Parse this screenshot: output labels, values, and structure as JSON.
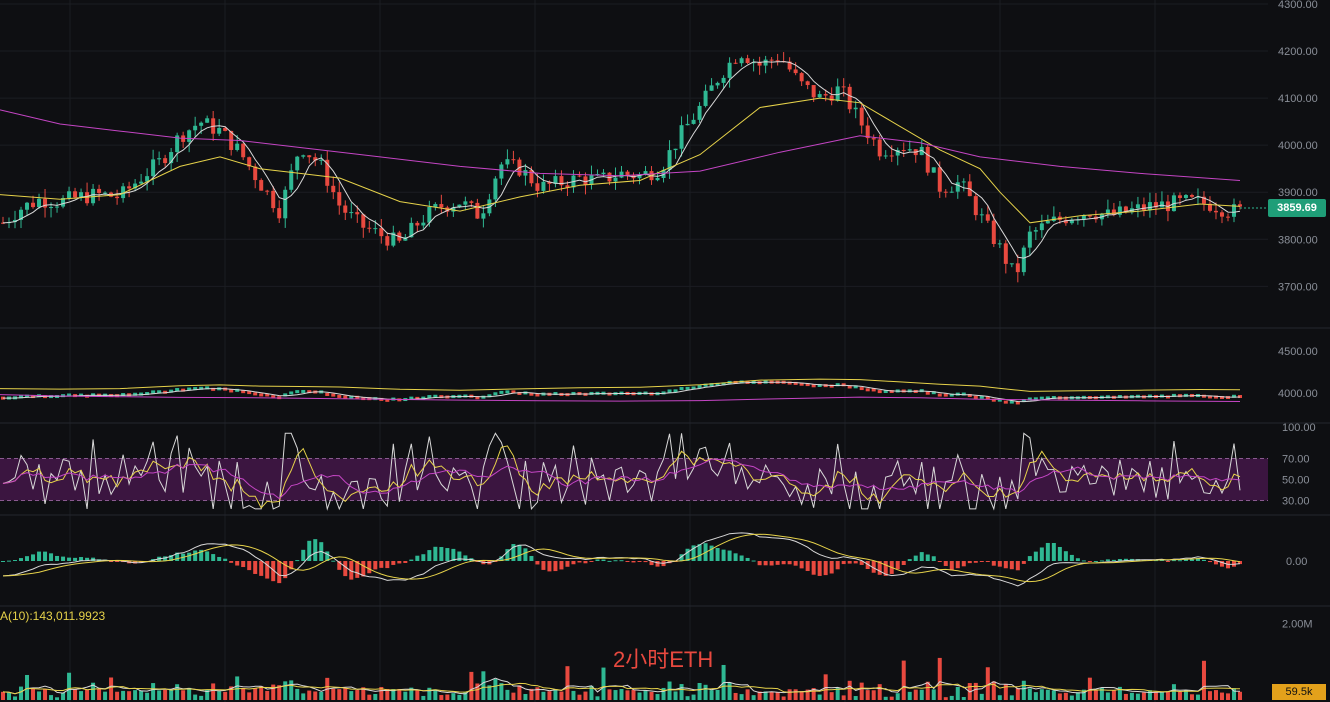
{
  "chart_data": {
    "type": "candlestick",
    "symbol_label": "2小时ETH",
    "current_price": "3859.69",
    "volume_ma_label": "A(10):143,011.9923",
    "volume_last": "59.5k",
    "panels": {
      "price": {
        "ylim": [
          3620,
          4300
        ],
        "ticks": [
          "4300.00",
          "4200.00",
          "4100.00",
          "4000.00",
          "3900.00",
          "3800.00",
          "3700.00"
        ],
        "tick_values": [
          4300,
          4200,
          4100,
          4000,
          3900,
          3800,
          3700
        ],
        "close_path": [
          [
            0,
            3830
          ],
          [
            20,
            3865
          ],
          [
            40,
            3885
          ],
          [
            60,
            3880
          ],
          [
            80,
            3890
          ],
          [
            100,
            3895
          ],
          [
            120,
            3890
          ],
          [
            140,
            3930
          ],
          [
            160,
            3965
          ],
          [
            180,
            4020
          ],
          [
            200,
            4050
          ],
          [
            220,
            4030
          ],
          [
            240,
            3985
          ],
          [
            260,
            3920
          ],
          [
            280,
            3860
          ],
          [
            300,
            4000
          ],
          [
            320,
            3960
          ],
          [
            340,
            3870
          ],
          [
            360,
            3830
          ],
          [
            380,
            3810
          ],
          [
            400,
            3790
          ],
          [
            420,
            3840
          ],
          [
            440,
            3870
          ],
          [
            460,
            3880
          ],
          [
            480,
            3850
          ],
          [
            500,
            3960
          ],
          [
            520,
            3950
          ],
          [
            540,
            3910
          ],
          [
            560,
            3920
          ],
          [
            580,
            3930
          ],
          [
            600,
            3925
          ],
          [
            620,
            3940
          ],
          [
            640,
            3935
          ],
          [
            660,
            3950
          ],
          [
            680,
            4020
          ],
          [
            700,
            4080
          ],
          [
            720,
            4150
          ],
          [
            740,
            4200
          ],
          [
            760,
            4170
          ],
          [
            780,
            4190
          ],
          [
            800,
            4130
          ],
          [
            820,
            4100
          ],
          [
            840,
            4120
          ],
          [
            860,
            4050
          ],
          [
            880,
            3990
          ],
          [
            900,
            4000
          ],
          [
            920,
            3990
          ],
          [
            940,
            3910
          ],
          [
            960,
            3920
          ],
          [
            980,
            3850
          ],
          [
            1000,
            3780
          ],
          [
            1015,
            3720
          ],
          [
            1030,
            3810
          ],
          [
            1050,
            3835
          ],
          [
            1070,
            3850
          ],
          [
            1090,
            3860
          ],
          [
            1110,
            3850
          ],
          [
            1130,
            3860
          ],
          [
            1150,
            3870
          ],
          [
            1170,
            3875
          ],
          [
            1190,
            3880
          ],
          [
            1210,
            3875
          ],
          [
            1230,
            3860
          ],
          [
            1240,
            3860
          ]
        ],
        "ma_yellow": [
          [
            0,
            3895
          ],
          [
            60,
            3885
          ],
          [
            120,
            3895
          ],
          [
            180,
            3955
          ],
          [
            220,
            3975
          ],
          [
            260,
            3950
          ],
          [
            300,
            3940
          ],
          [
            340,
            3930
          ],
          [
            400,
            3880
          ],
          [
            460,
            3860
          ],
          [
            520,
            3890
          ],
          [
            580,
            3915
          ],
          [
            640,
            3925
          ],
          [
            700,
            3980
          ],
          [
            760,
            4080
          ],
          [
            820,
            4100
          ],
          [
            860,
            4090
          ],
          [
            900,
            4040
          ],
          [
            940,
            3990
          ],
          [
            980,
            3950
          ],
          [
            1000,
            3900
          ],
          [
            1030,
            3835
          ],
          [
            1080,
            3850
          ],
          [
            1140,
            3860
          ],
          [
            1200,
            3875
          ],
          [
            1240,
            3870
          ]
        ],
        "ma_magenta": [
          [
            0,
            4075
          ],
          [
            60,
            4045
          ],
          [
            120,
            4030
          ],
          [
            180,
            4015
          ],
          [
            240,
            4010
          ],
          [
            300,
            3995
          ],
          [
            380,
            3975
          ],
          [
            460,
            3955
          ],
          [
            540,
            3940
          ],
          [
            620,
            3935
          ],
          [
            700,
            3945
          ],
          [
            780,
            3985
          ],
          [
            860,
            4020
          ],
          [
            920,
            4005
          ],
          [
            980,
            3975
          ],
          [
            1060,
            3955
          ],
          [
            1140,
            3940
          ],
          [
            1240,
            3925
          ]
        ]
      },
      "boll": {
        "ticks": [
          "4500.00",
          "4000.00"
        ],
        "tick_values": [
          4500,
          4000
        ],
        "ylim": [
          3700,
          4700
        ]
      },
      "rsi": {
        "ticks": [
          "100.00",
          "70.00",
          "50.00",
          "30.00"
        ],
        "tick_values": [
          100,
          70,
          50,
          30
        ],
        "ylim": [
          20,
          100
        ],
        "band": [
          30,
          70
        ]
      },
      "macd": {
        "ticks": [
          "0.00"
        ],
        "tick_values": [
          0
        ],
        "ylim": [
          -40,
          40
        ]
      },
      "volume": {
        "ticks": [
          "2.00M"
        ],
        "tick_values": [
          2000000
        ],
        "ylim": [
          0,
          2300000
        ]
      }
    },
    "colors": {
      "up": "#2fb893",
      "down": "#e8493f",
      "ma_white": "#d8d8d8",
      "ma_yellow": "#e6d24a",
      "ma_magenta": "#c445c4",
      "rsi_band": "#3b1540"
    }
  }
}
